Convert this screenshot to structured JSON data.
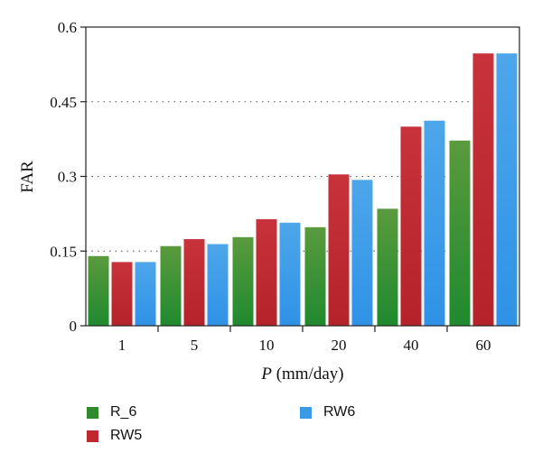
{
  "chart_data": {
    "type": "bar",
    "categories": [
      "1",
      "5",
      "10",
      "20",
      "40",
      "60"
    ],
    "series": [
      {
        "name": "R_6",
        "values": [
          0.14,
          0.16,
          0.178,
          0.198,
          0.235,
          0.372
        ],
        "color_top": "#5b9a3e",
        "color_bottom": "#1f8a2e"
      },
      {
        "name": "RW5",
        "values": [
          0.128,
          0.174,
          0.214,
          0.304,
          0.4,
          0.547
        ],
        "color_top": "#c8333b",
        "color_bottom": "#b5222a"
      },
      {
        "name": "RW6",
        "values": [
          0.128,
          0.164,
          0.207,
          0.293,
          0.412,
          0.547
        ],
        "color_top": "#4ea6ea",
        "color_bottom": "#2f92e6"
      }
    ],
    "yticks": [
      "0",
      "0.15",
      "0.3",
      "0.45",
      "0.6"
    ],
    "ylim": [
      0,
      0.6
    ],
    "ylabel": "FAR",
    "xlabel_italic": "P",
    "xlabel_rest": " (mm/day)",
    "grid": "dotted horizontal",
    "legend": "bottom"
  }
}
